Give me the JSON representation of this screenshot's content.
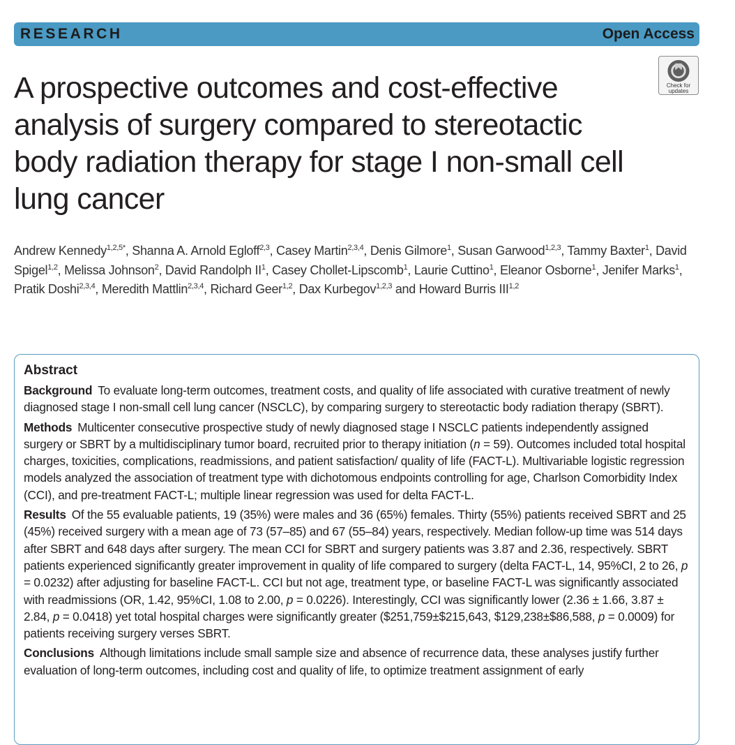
{
  "banner": {
    "label": "RESEARCH",
    "access": "Open Access"
  },
  "check_for_updates": {
    "line1": "Check for",
    "line2": "updates"
  },
  "title": "A prospective outcomes and cost-effective analysis of surgery compared to stereotactic body radiation therapy for stage I non-small cell lung cancer",
  "authors": [
    {
      "name": "Andrew Kennedy",
      "sup": "1,2,5*",
      "sep": ", "
    },
    {
      "name": "Shanna A. Arnold Egloff",
      "sup": "2,3",
      "sep": ", "
    },
    {
      "name": "Casey Martin",
      "sup": "2,3,4",
      "sep": ", "
    },
    {
      "name": "Denis Gilmore",
      "sup": "1",
      "sep": ", "
    },
    {
      "name": "Susan Garwood",
      "sup": "1,2,3",
      "sep": ", "
    },
    {
      "name": "Tammy Baxter",
      "sup": "1",
      "sep": ", "
    },
    {
      "name": "David Spigel",
      "sup": "1,2",
      "sep": ", "
    },
    {
      "name": "Melissa Johnson",
      "sup": "2",
      "sep": ", "
    },
    {
      "name": "David Randolph II",
      "sup": "1",
      "sep": ", "
    },
    {
      "name": "Casey Chollet-Lipscomb",
      "sup": "1",
      "sep": ", "
    },
    {
      "name": "Laurie Cuttino",
      "sup": "1",
      "sep": ", "
    },
    {
      "name": "Eleanor Osborne",
      "sup": "1",
      "sep": ", "
    },
    {
      "name": "Jenifer Marks",
      "sup": "1",
      "sep": ", "
    },
    {
      "name": "Pratik Doshi",
      "sup": "2,3,4",
      "sep": ", "
    },
    {
      "name": "Meredith Mattlin",
      "sup": "2,3,4",
      "sep": ", "
    },
    {
      "name": "Richard Geer",
      "sup": "1,2",
      "sep": ", "
    },
    {
      "name": "Dax Kurbegov",
      "sup": "1,2,3",
      "sep": " and "
    },
    {
      "name": "Howard Burris III",
      "sup": "1,2",
      "sep": ""
    }
  ],
  "abstract": {
    "heading": "Abstract",
    "background": {
      "head": "Background",
      "text": "To evaluate long-term outcomes, treatment costs, and quality of life associated with curative treatment of newly diagnosed stage I non-small cell lung cancer (NSCLC), by comparing surgery to stereotactic body radiation therapy (SBRT)."
    },
    "methods": {
      "head": "Methods",
      "text_a": "Multicenter consecutive prospective study of newly diagnosed stage I NSCLC patients independently assigned surgery or SBRT by a multidisciplinary tumor board, recruited prior to therapy initiation (",
      "n_symbol": "n",
      "text_b": " = 59). Outcomes included total hospital charges, toxicities, complications, readmissions, and patient satisfaction/ quality of life (FACT-L). Multivariable logistic regression models analyzed the association of treatment type with dichotomous endpoints controlling for age, Charlson Comorbidity Index (CCI), and pre-treatment FACT-L; multiple linear regression was used for delta FACT-L."
    },
    "results": {
      "head": "Results",
      "text_a": "Of the 55 evaluable patients, 19 (35%) were males and 36 (65%) females. Thirty (55%) patients received SBRT and 25 (45%) received surgery with a mean age of 73 (57–85) and 67 (55–84) years, respectively. Median follow-up time was 514 days after SBRT and 648 days after surgery. The mean CCI for SBRT and surgery patients was 3.87 and 2.36, respectively. SBRT patients experienced significantly greater improvement in quality of life compared to surgery (delta FACT-L, 14, 95%CI, 2 to 26, ",
      "p1": "p",
      "text_b": " = 0.0232) after adjusting for baseline FACT-L. CCI but not age, treatment type, or baseline FACT-L was significantly associated with readmissions (OR, 1.42, 95%CI, 1.08 to 2.00, ",
      "p2": "p",
      "text_c": " = 0.0226). Interestingly, CCI was significantly lower (2.36 ± 1.66, 3.87 ± 2.84, ",
      "p3": "p",
      "text_d": " = 0.0418) yet total hospital charges were significantly greater ($251,759±$215,643, $129,238±$86,588, ",
      "p4": "p",
      "text_e": " = 0.0009) for patients receiving surgery verses SBRT."
    },
    "conclusions": {
      "head": "Conclusions",
      "text": "Although limitations include small sample size and absence of recurrence data, these analyses justify further evaluation of long-term outcomes, including cost and quality of life, to optimize treatment assignment of early"
    }
  }
}
